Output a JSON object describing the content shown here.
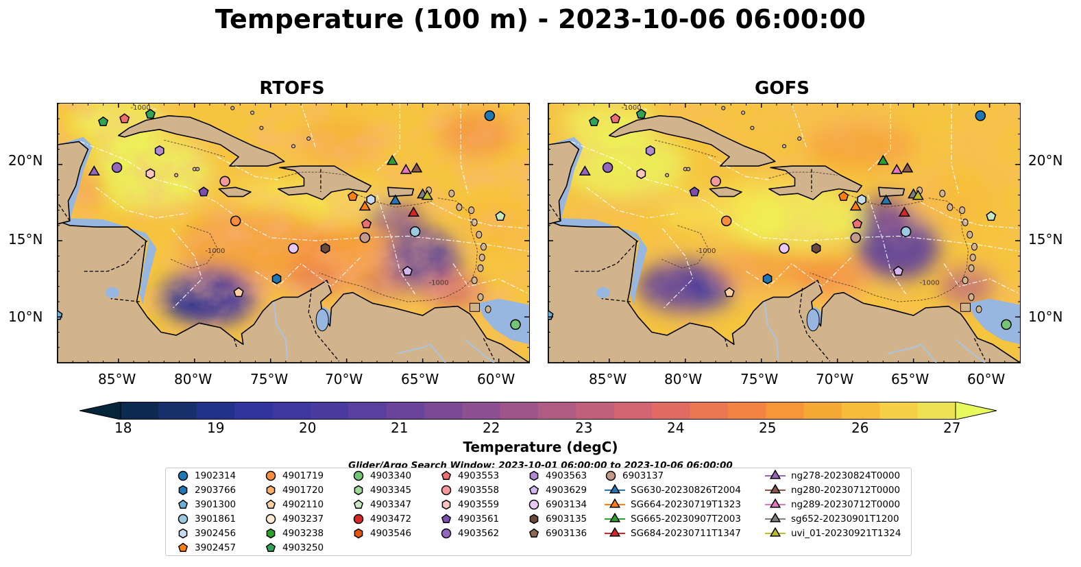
{
  "title": "Temperature (100 m) - 2023-10-06 06:00:00",
  "panels": [
    {
      "name": "RTOFS",
      "variant": 0
    },
    {
      "name": "GOFS",
      "variant": 1
    }
  ],
  "map_extent": {
    "lon": [
      -89,
      -58
    ],
    "lat": [
      7,
      24
    ]
  },
  "lat_ticks": [
    {
      "value": 20,
      "label": "20°N"
    },
    {
      "value": 15,
      "label": "15°N"
    },
    {
      "value": 10,
      "label": "10°N"
    }
  ],
  "lon_ticks": [
    {
      "value": -85,
      "label": "85°W"
    },
    {
      "value": -80,
      "label": "80°W"
    },
    {
      "value": -75,
      "label": "75°W"
    },
    {
      "value": -70,
      "label": "70°W"
    },
    {
      "value": -65,
      "label": "65°W"
    },
    {
      "value": -60,
      "label": "60°W"
    }
  ],
  "contour_labels": [
    "-1000",
    "-1000",
    "-1000"
  ],
  "colorbar": {
    "title": "Temperature (degC)",
    "min": 18,
    "max": 27,
    "step": 0.5,
    "tick_labels": [
      "18",
      "19",
      "20",
      "21",
      "22",
      "23",
      "24",
      "25",
      "26",
      "27"
    ],
    "colors": [
      "#04253a",
      "#0c2a50",
      "#16306c",
      "#22328a",
      "#31349c",
      "#3d37a0",
      "#4b3aa0",
      "#5b3f9e",
      "#6b449a",
      "#7c4a95",
      "#8d5090",
      "#9e568a",
      "#b05b83",
      "#c1607b",
      "#d26571",
      "#e16b63",
      "#ec7552",
      "#f48343",
      "#f69638",
      "#f7a935",
      "#f7bc3a",
      "#f5cf45",
      "#eee153",
      "#e8fa5b"
    ]
  },
  "legend": {
    "title": "Glider/Argo Search Window: 2023-10-01 06:00:00 to 2023-10-06 06:00:00",
    "columns": [
      [
        {
          "label": "1902314",
          "marker": "circle",
          "color": "#1f77b4"
        },
        {
          "label": "2903766",
          "marker": "hexagon",
          "color": "#1f77b4"
        },
        {
          "label": "3901300",
          "marker": "pentagon",
          "color": "#6baed6"
        },
        {
          "label": "3901861",
          "marker": "circle",
          "color": "#9ecae1"
        },
        {
          "label": "3902456",
          "marker": "hexagon",
          "color": "#c6dbef"
        },
        {
          "label": "3902457",
          "marker": "pentagon",
          "color": "#ff7f0e"
        }
      ],
      [
        {
          "label": "4901719",
          "marker": "circle",
          "color": "#fd8d3c"
        },
        {
          "label": "4901720",
          "marker": "hexagon",
          "color": "#fdae6b"
        },
        {
          "label": "4902110",
          "marker": "pentagon",
          "color": "#fdd0a2"
        },
        {
          "label": "4903237",
          "marker": "circle",
          "color": "#feebd2"
        },
        {
          "label": "4903238",
          "marker": "hexagon",
          "color": "#2ca02c"
        },
        {
          "label": "4903250",
          "marker": "pentagon",
          "color": "#31a354"
        }
      ],
      [
        {
          "label": "4903340",
          "marker": "circle",
          "color": "#74c476"
        },
        {
          "label": "4903345",
          "marker": "hexagon",
          "color": "#a1d99b"
        },
        {
          "label": "4903347",
          "marker": "pentagon",
          "color": "#c7e9c0"
        },
        {
          "label": "4903472",
          "marker": "circle",
          "color": "#d62728"
        },
        {
          "label": "4903546",
          "marker": "hexagon",
          "color": "#e6550d"
        }
      ],
      [
        {
          "label": "4903553",
          "marker": "pentagon",
          "color": "#ef6e6e"
        },
        {
          "label": "4903558",
          "marker": "circle",
          "color": "#f59a9a"
        },
        {
          "label": "4903559",
          "marker": "hexagon",
          "color": "#fcc5c0"
        },
        {
          "label": "4903561",
          "marker": "pentagon",
          "color": "#7b4fb0"
        },
        {
          "label": "4903562",
          "marker": "circle",
          "color": "#9467bd"
        }
      ],
      [
        {
          "label": "4903563",
          "marker": "hexagon",
          "color": "#b08ad0"
        },
        {
          "label": "4903629",
          "marker": "pentagon",
          "color": "#d4b9f0"
        },
        {
          "label": "6903134",
          "marker": "circle",
          "color": "#e8c8f8"
        },
        {
          "label": "6903135",
          "marker": "hexagon",
          "color": "#6b4a3a"
        },
        {
          "label": "6903136",
          "marker": "pentagon",
          "color": "#8c6a55"
        }
      ],
      [
        {
          "label": "6903137",
          "marker": "circle",
          "color": "#c49a8a"
        },
        {
          "label": "SG630-20230826T2004",
          "marker": "triangle",
          "color": "#1f77b4"
        },
        {
          "label": "SG664-20230719T1323",
          "marker": "triangle",
          "color": "#ff7f0e"
        },
        {
          "label": "SG665-20230907T2003",
          "marker": "triangle",
          "color": "#2ca02c"
        },
        {
          "label": "SG684-20230711T1347",
          "marker": "triangle",
          "color": "#d62728"
        }
      ],
      [
        {
          "label": "ng278-20230824T0000",
          "marker": "triangle",
          "color": "#9467bd"
        },
        {
          "label": "ng280-20230712T0000",
          "marker": "triangle",
          "color": "#8c564b"
        },
        {
          "label": "ng289-20230712T0000",
          "marker": "triangle",
          "color": "#e377c2"
        },
        {
          "label": "sg652-20230901T1200",
          "marker": "triangle",
          "color": "#7f7f7f"
        },
        {
          "label": "uvi_01-20230921T1324",
          "marker": "triangle",
          "color": "#bcbd22"
        }
      ]
    ]
  },
  "map_markers": [
    {
      "id": "1902314",
      "marker": "circle",
      "color": "#1f77b4",
      "lon": -60.6,
      "lat": 23.2
    },
    {
      "id": "2903766",
      "marker": "hexagon",
      "color": "#1f77b4",
      "lon": -74.6,
      "lat": 12.5
    },
    {
      "id": "3901300",
      "marker": "pentagon",
      "color": "#6baed6",
      "lon": -89.0,
      "lat": 10.1
    },
    {
      "id": "3901861",
      "marker": "circle",
      "color": "#9ecae1",
      "lon": -65.5,
      "lat": 15.6
    },
    {
      "id": "3902456",
      "marker": "hexagon",
      "color": "#c6dbef",
      "lon": -68.4,
      "lat": 17.7
    },
    {
      "id": "3902457",
      "marker": "pentagon",
      "color": "#ff7f0e",
      "lon": -69.6,
      "lat": 17.9
    },
    {
      "id": "4901719",
      "marker": "circle",
      "color": "#fd8d3c",
      "lon": -77.3,
      "lat": 16.3
    },
    {
      "id": "4902110",
      "marker": "pentagon",
      "color": "#fdd0a2",
      "lon": -77.1,
      "lat": 11.6
    },
    {
      "id": "4903250",
      "marker": "pentagon",
      "color": "#31a354",
      "lon": -82.9,
      "lat": 23.3
    },
    {
      "id": "4903340",
      "marker": "circle",
      "color": "#74c476",
      "lon": -58.9,
      "lat": 9.5
    },
    {
      "id": "4903347",
      "marker": "pentagon",
      "color": "#c7e9c0",
      "lon": -59.9,
      "lat": 16.6
    },
    {
      "id": "4903553",
      "marker": "pentagon",
      "color": "#ef6e6e",
      "lon": -84.6,
      "lat": 23.0
    },
    {
      "id": "4903553b",
      "marker": "pentagon",
      "color": "#ef6e6e",
      "lon": -68.7,
      "lat": 16.1
    },
    {
      "id": "4903558",
      "marker": "circle",
      "color": "#f59a9a",
      "lon": -78.0,
      "lat": 18.9
    },
    {
      "id": "4903559",
      "marker": "hexagon",
      "color": "#fcc5c0",
      "lon": -82.9,
      "lat": 19.4
    },
    {
      "id": "4903561",
      "marker": "pentagon",
      "color": "#7b4fb0",
      "lon": -79.4,
      "lat": 18.2
    },
    {
      "id": "4903562",
      "marker": "circle",
      "color": "#9467bd",
      "lon": -85.1,
      "lat": 19.8
    },
    {
      "id": "4903563",
      "marker": "hexagon",
      "color": "#b08ad0",
      "lon": -82.3,
      "lat": 20.9
    },
    {
      "id": "4903629",
      "marker": "pentagon",
      "color": "#d4b9f0",
      "lon": -66.0,
      "lat": 13.0
    },
    {
      "id": "6903134",
      "marker": "circle",
      "color": "#e8c8f8",
      "lon": -73.5,
      "lat": 14.5
    },
    {
      "id": "6903135",
      "marker": "hexagon",
      "color": "#6b4a3a",
      "lon": -71.4,
      "lat": 14.5
    },
    {
      "id": "6903137",
      "marker": "circle",
      "color": "#c49a8a",
      "lon": -68.8,
      "lat": 15.2
    },
    {
      "id": "4903562b",
      "marker": "pentagon",
      "color": "#31a354",
      "lon": -86.0,
      "lat": 22.8
    },
    {
      "id": "SG630",
      "marker": "triangle",
      "color": "#1f77b4",
      "lon": -66.8,
      "lat": 17.6
    },
    {
      "id": "SG664",
      "marker": "triangle",
      "color": "#ff7f0e",
      "lon": -68.8,
      "lat": 17.2
    },
    {
      "id": "SG665",
      "marker": "triangle",
      "color": "#2ca02c",
      "lon": -67.0,
      "lat": 20.2
    },
    {
      "id": "SG684",
      "marker": "triangle",
      "color": "#d62728",
      "lon": -65.6,
      "lat": 16.8
    },
    {
      "id": "ng278",
      "marker": "triangle",
      "color": "#9467bd",
      "lon": -86.6,
      "lat": 19.5
    },
    {
      "id": "ng280",
      "marker": "triangle",
      "color": "#8c564b",
      "lon": -65.4,
      "lat": 19.7
    },
    {
      "id": "ng289",
      "marker": "triangle",
      "color": "#e377c2",
      "lon": -66.1,
      "lat": 19.6
    },
    {
      "id": "sg652",
      "marker": "triangle",
      "color": "#7f7f7f",
      "lon": -65.0,
      "lat": 18.0
    },
    {
      "id": "uvi_01",
      "marker": "triangle",
      "color": "#bcbd22",
      "lon": -64.7,
      "lat": 17.9
    }
  ],
  "colors": {
    "land": "#d2b48c",
    "shallow_water": "#97b6e0",
    "rivers": "#a8c4e0",
    "marker_edge": "#000000"
  }
}
